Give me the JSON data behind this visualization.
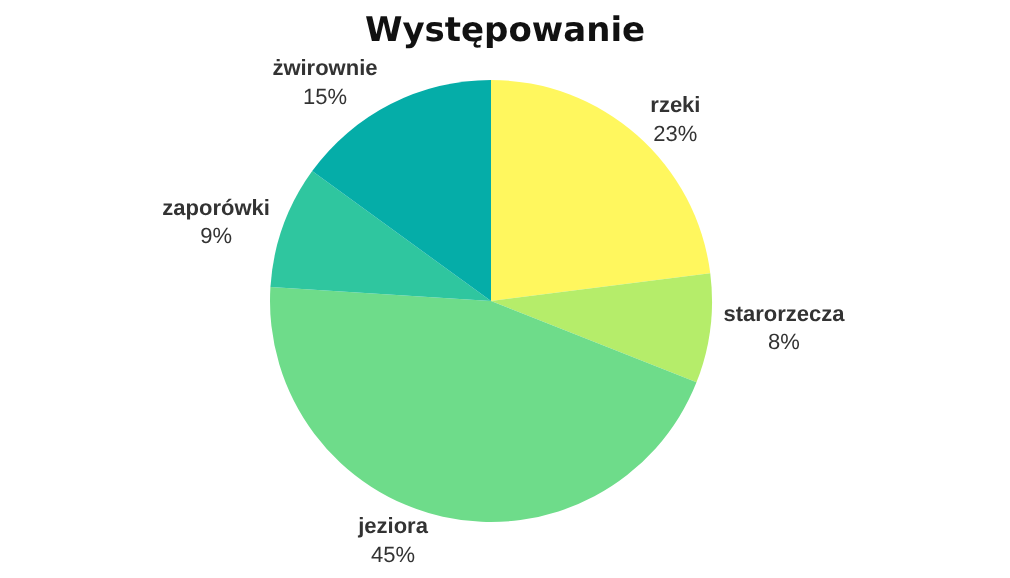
{
  "chart_data": {
    "type": "pie",
    "title": "Występowanie",
    "categories": [
      "rzeki",
      "starorzecza",
      "jeziora",
      "zaporówki",
      "żwirownie"
    ],
    "values": [
      23,
      8,
      45,
      9,
      15
    ],
    "value_labels": [
      "23%",
      "8%",
      "45%",
      "9%",
      "15%"
    ],
    "colors": [
      "#fff75e",
      "#b5ed6a",
      "#6edc8a",
      "#2fc69f",
      "#05ada8"
    ],
    "legend": false
  }
}
